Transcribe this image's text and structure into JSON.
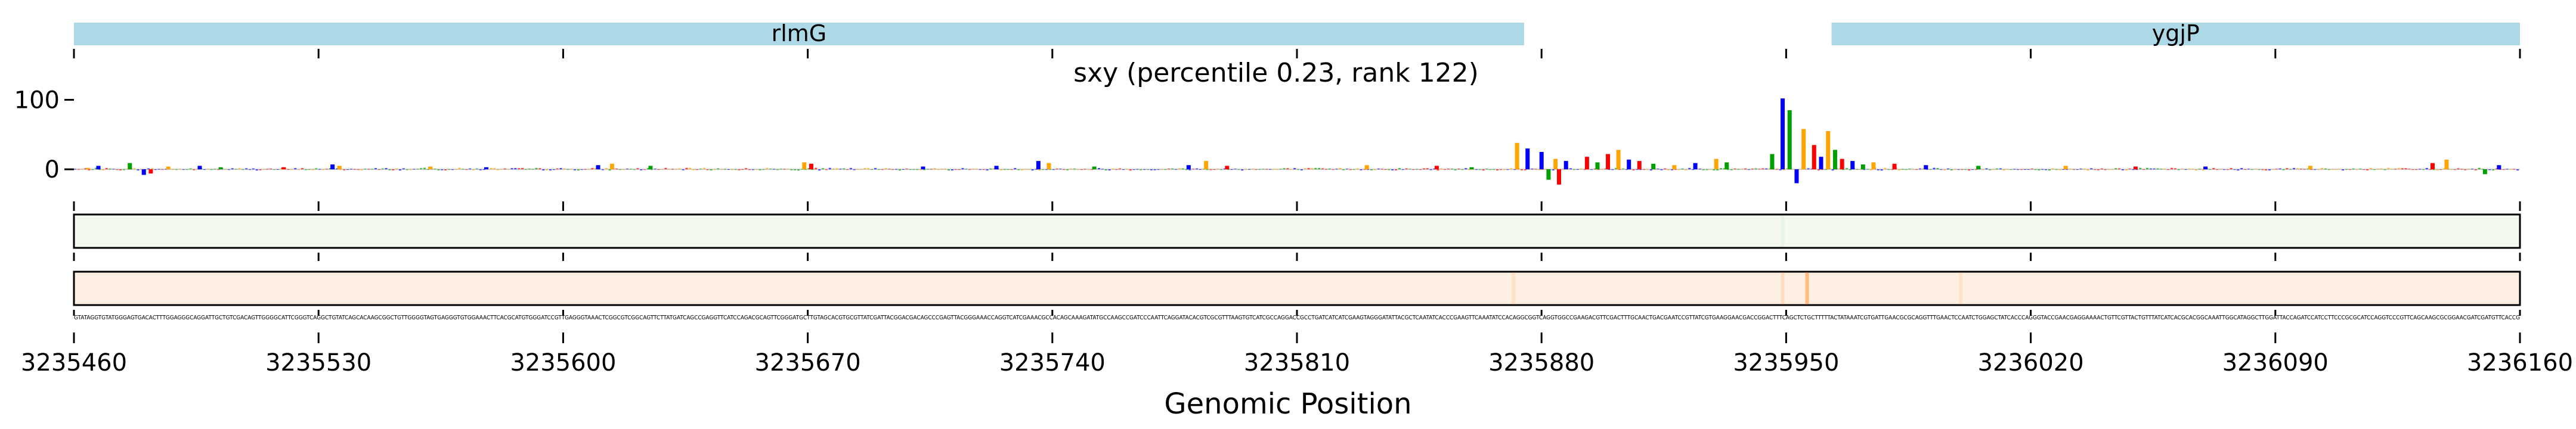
{
  "chart_data": {
    "type": "sequence-logo-track",
    "title": "sxy (percentile 0.23, rank 122)",
    "xlabel": "Genomic Position",
    "xlim": [
      3235460,
      3236160
    ],
    "x_ticks": [
      3235460,
      3235530,
      3235600,
      3235670,
      3235740,
      3235810,
      3235880,
      3235950,
      3236020,
      3236090,
      3236160
    ],
    "x_tick_labels": [
      "3235460",
      "3235530",
      "3235600",
      "3235670",
      "3235740",
      "3235810",
      "3235880",
      "3235950",
      "3236020",
      "3236090",
      "3236160"
    ],
    "genes": [
      {
        "name": "rlmG",
        "start": 3235460,
        "end": 3235875
      },
      {
        "name": "ygjP",
        "start": 3235963,
        "end": 3236160
      }
    ],
    "logo_ylim": [
      -35,
      115
    ],
    "logo_yticks": [
      0,
      100
    ],
    "logo_ytick_labels": [
      "0",
      "100"
    ],
    "logo_peaks": [
      {
        "x": 3235464,
        "height": 2,
        "base": "G"
      },
      {
        "x": 3235467,
        "height": 5,
        "base": "C"
      },
      {
        "x": 3235476,
        "height": 9,
        "base": "A"
      },
      {
        "x": 3235480,
        "height": -8,
        "base": "C"
      },
      {
        "x": 3235482,
        "height": -6,
        "base": "T"
      },
      {
        "x": 3235487,
        "height": 4,
        "base": "G"
      },
      {
        "x": 3235496,
        "height": 5,
        "base": "C"
      },
      {
        "x": 3235502,
        "height": 3,
        "base": "A"
      },
      {
        "x": 3235520,
        "height": 3,
        "base": "T"
      },
      {
        "x": 3235534,
        "height": 7,
        "base": "C"
      },
      {
        "x": 3235536,
        "height": 5,
        "base": "G"
      },
      {
        "x": 3235562,
        "height": 4,
        "base": "G"
      },
      {
        "x": 3235578,
        "height": 3,
        "base": "C"
      },
      {
        "x": 3235610,
        "height": 6,
        "base": "C"
      },
      {
        "x": 3235614,
        "height": 8,
        "base": "G"
      },
      {
        "x": 3235625,
        "height": 5,
        "base": "A"
      },
      {
        "x": 3235669,
        "height": 10,
        "base": "G"
      },
      {
        "x": 3235671,
        "height": 8,
        "base": "T"
      },
      {
        "x": 3235703,
        "height": 4,
        "base": "C"
      },
      {
        "x": 3235724,
        "height": 5,
        "base": "C"
      },
      {
        "x": 3235736,
        "height": 12,
        "base": "C"
      },
      {
        "x": 3235739,
        "height": 9,
        "base": "G"
      },
      {
        "x": 3235752,
        "height": 4,
        "base": "A"
      },
      {
        "x": 3235779,
        "height": 6,
        "base": "C"
      },
      {
        "x": 3235784,
        "height": 12,
        "base": "G"
      },
      {
        "x": 3235790,
        "height": 5,
        "base": "T"
      },
      {
        "x": 3235830,
        "height": 6,
        "base": "G"
      },
      {
        "x": 3235850,
        "height": 5,
        "base": "T"
      },
      {
        "x": 3235860,
        "height": 3,
        "base": "A"
      },
      {
        "x": 3235873,
        "height": 38,
        "base": "G"
      },
      {
        "x": 3235876,
        "height": 30,
        "base": "C"
      },
      {
        "x": 3235880,
        "height": 25,
        "base": "C"
      },
      {
        "x": 3235882,
        "height": -15,
        "base": "A"
      },
      {
        "x": 3235884,
        "height": 15,
        "base": "G"
      },
      {
        "x": 3235885,
        "height": -22,
        "base": "T"
      },
      {
        "x": 3235887,
        "height": 12,
        "base": "C"
      },
      {
        "x": 3235893,
        "height": 18,
        "base": "T"
      },
      {
        "x": 3235896,
        "height": 10,
        "base": "A"
      },
      {
        "x": 3235899,
        "height": 22,
        "base": "T"
      },
      {
        "x": 3235902,
        "height": 28,
        "base": "G"
      },
      {
        "x": 3235905,
        "height": 14,
        "base": "C"
      },
      {
        "x": 3235908,
        "height": 12,
        "base": "T"
      },
      {
        "x": 3235912,
        "height": 8,
        "base": "A"
      },
      {
        "x": 3235918,
        "height": 6,
        "base": "G"
      },
      {
        "x": 3235924,
        "height": 9,
        "base": "C"
      },
      {
        "x": 3235930,
        "height": 15,
        "base": "G"
      },
      {
        "x": 3235933,
        "height": 10,
        "base": "A"
      },
      {
        "x": 3235946,
        "height": 22,
        "base": "A"
      },
      {
        "x": 3235949,
        "height": 102,
        "base": "C"
      },
      {
        "x": 3235951,
        "height": 85,
        "base": "A"
      },
      {
        "x": 3235953,
        "height": -20,
        "base": "C"
      },
      {
        "x": 3235955,
        "height": 58,
        "base": "G"
      },
      {
        "x": 3235958,
        "height": 35,
        "base": "T"
      },
      {
        "x": 3235960,
        "height": 18,
        "base": "C"
      },
      {
        "x": 3235962,
        "height": 55,
        "base": "G"
      },
      {
        "x": 3235964,
        "height": 28,
        "base": "A"
      },
      {
        "x": 3235966,
        "height": 15,
        "base": "T"
      },
      {
        "x": 3235969,
        "height": 12,
        "base": "C"
      },
      {
        "x": 3235972,
        "height": 7,
        "base": "A"
      },
      {
        "x": 3235975,
        "height": 10,
        "base": "G"
      },
      {
        "x": 3235981,
        "height": 8,
        "base": "T"
      },
      {
        "x": 3235990,
        "height": 6,
        "base": "C"
      },
      {
        "x": 3236005,
        "height": 5,
        "base": "A"
      },
      {
        "x": 3236030,
        "height": 5,
        "base": "G"
      },
      {
        "x": 3236050,
        "height": 4,
        "base": "T"
      },
      {
        "x": 3236070,
        "height": 4,
        "base": "C"
      },
      {
        "x": 3236100,
        "height": 5,
        "base": "G"
      },
      {
        "x": 3236135,
        "height": 9,
        "base": "T"
      },
      {
        "x": 3236139,
        "height": 14,
        "base": "G"
      },
      {
        "x": 3236150,
        "height": -7,
        "base": "A"
      },
      {
        "x": 3236154,
        "height": 6,
        "base": "C"
      }
    ],
    "base_colors": {
      "A": "#00a000",
      "C": "#0000ff",
      "G": "#ffa500",
      "T": "#ff0000"
    },
    "heatmap_tracks": [
      {
        "name": "track-1",
        "color": "#2ca02c",
        "highlights": [
          {
            "x": 3235949,
            "intensity": 0.05
          }
        ]
      },
      {
        "name": "track-2",
        "color": "#ff7f0e",
        "highlights": [
          {
            "x": 3235872,
            "intensity": 0.12
          },
          {
            "x": 3235949,
            "intensity": 0.15
          },
          {
            "x": 3235956,
            "intensity": 0.45
          },
          {
            "x": 3236000,
            "intensity": 0.1
          }
        ]
      }
    ]
  },
  "sequence": "GTATAGGTGTATGGGAGTGACACTTTGGAGGGCAGGATTGCTGTCGACAGTTGGGGCATTCGGGTCAGGCTGTATCAGCACAAGCGGCTGTTGGGGTAGTGAGGGTGTGGAAACTTCACGCATGTGGGATCCGTTGAGGGTAAACTCGGCGTCGGCAGTTCTTATGATCAGCCGAGGTTCATCCAGACGCAGTTCGGGATGCTTGTAGCACGTGCGTTATCGATTACGGACGACAGCCCGAGTTACGGGAAACCAGGTCATCGAAACGCCACAGCAAAGATATGCCAAGCCGATCCCAATTCAGGATACACGTCGCGTTTAAGTGTCATCGCCAGGACCGCCTGATCATCATCGAAGTAGGGATATTACGCTCAATATCACCCGAAGTTCAAATATCCACAGGCGGTCAGGTGGCCGAAGACGTTCGACTTTGCAACTGACGAATCCGTTATCGTGAAGGAACGACCGGACTTTCAGCTCTGCTTTTTACTATAAATCGTGATTGAACGCGCAGGTTTGAACTCCAATCTGGAGCTATCACCCAGGGTACCGAACGAGGAAAACTGTTCGTTACTGTTTATCATCACGCACGGCAAATTGGCATAGGCTTGGATTACCAGATCCATCCTTCCCGCGCATCCAGGTCCCGTTCAGCAAGCGCGGAACGATCGATGTTCACCG",
  "colors": {
    "gene_fill": "#add8e6",
    "background": "#ffffff"
  }
}
